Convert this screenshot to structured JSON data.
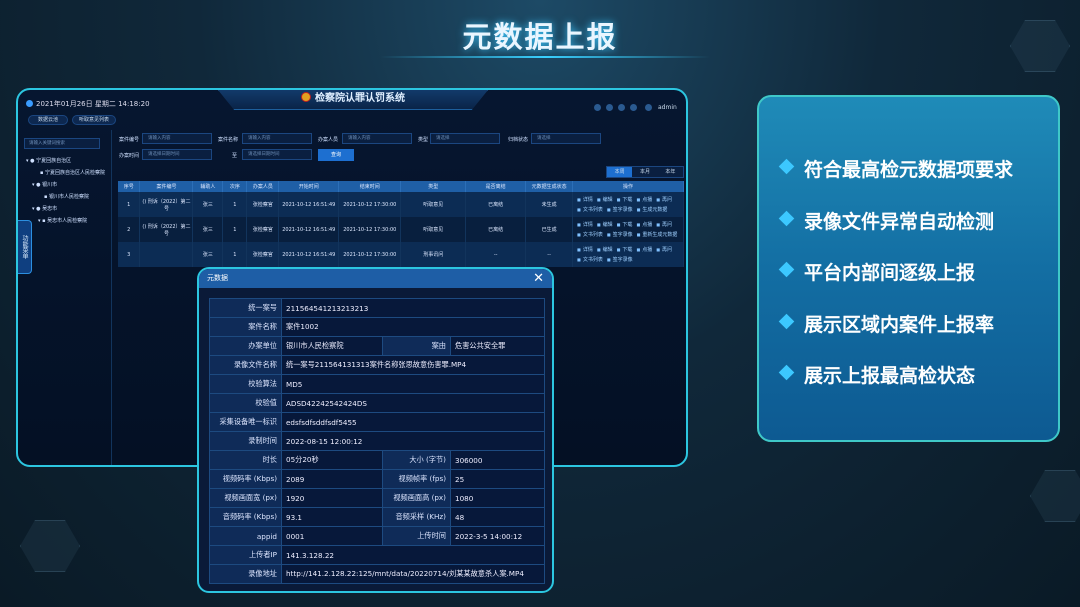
{
  "page_title": "元数据上报",
  "app": {
    "datetime": "2021年01月26日  星期二  14:18:20",
    "system_title": "检察院认罪认罚系统",
    "nav_pills": [
      "数据云池",
      "听取意见列表"
    ],
    "user": "admin",
    "header_icons": [
      "user-icon",
      "home-icon",
      "settings-icon",
      "message-icon"
    ],
    "side_menu_tab": "功能菜单",
    "sidebar": {
      "search_placeholder": "请输入关键词搜索",
      "tree": [
        "宁夏回族自治区",
        "宁夏回族自治区人民检察院",
        "银川市",
        "银川市人民检察院",
        "吴忠市",
        "吴忠市人民检察院"
      ]
    },
    "filters": {
      "case_no_label": "案件编号",
      "case_no_placeholder": "请输入内容",
      "case_name_label": "案件名称",
      "case_name_placeholder": "请输入内容",
      "handler_label": "办案人员",
      "handler_placeholder": "请输入内容",
      "type_label": "类型",
      "type_placeholder": "请选择",
      "status_label": "归档状态",
      "status_placeholder": "请选择",
      "time_label": "办案时间",
      "time_start_placeholder": "请选择日期时间",
      "to_label": "至",
      "time_end_placeholder": "请选择日期时间",
      "query_button": "查询"
    },
    "range_tabs": [
      "本周",
      "本月",
      "本年"
    ],
    "table": {
      "headers": [
        "序号",
        "案件编号",
        "辅助人",
        "次序",
        "办案人员",
        "开始时间",
        "结束时间",
        "类型",
        "是否离结",
        "元数据生成状态",
        "操作"
      ],
      "rows": [
        {
          "no": "1",
          "case": "() 刑诉（2022）第二号",
          "assist": "张三",
          "order": "1",
          "handler": "张检察官",
          "start": "2021-10-12 16:51:49",
          "end": "2021-10-12 17:30:00",
          "type": "听取意见",
          "closed": "已离结",
          "meta": "未生成",
          "ops": [
            "详情",
            "编辑",
            "下载",
            "点播",
            "再问",
            "文书列表",
            "签字录像",
            "生成元数据"
          ]
        },
        {
          "no": "2",
          "case": "() 刑诉（2022）第二号",
          "assist": "张三",
          "order": "1",
          "handler": "张检察官",
          "start": "2021-10-12 16:51:49",
          "end": "2021-10-12 17:30:00",
          "type": "听取意见",
          "closed": "已离结",
          "meta": "已生成",
          "ops": [
            "详情",
            "编辑",
            "下载",
            "点播",
            "再问",
            "文书列表",
            "签字录像",
            "重新生成元数据"
          ]
        },
        {
          "no": "3",
          "case": "",
          "assist": "张三",
          "order": "1",
          "handler": "张检察官",
          "start": "2021-10-12 16:51:49",
          "end": "2021-10-12 17:30:00",
          "type": "刑事讯问",
          "closed": "--",
          "meta": "--",
          "ops": [
            "详情",
            "编辑",
            "下载",
            "点播",
            "再问",
            "文书列表",
            "签字录像"
          ]
        }
      ]
    }
  },
  "modal": {
    "title": "元数据",
    "close": "✕",
    "fields": {
      "unified_no": {
        "k": "统一案号",
        "v": "211564541213213213"
      },
      "case_name": {
        "k": "案件名称",
        "v": "案件1002"
      },
      "unit": {
        "k": "办案单位",
        "v": "银川市人民检察院"
      },
      "cause": {
        "k": "案由",
        "v": "危害公共安全罪"
      },
      "file_name": {
        "k": "录像文件名称",
        "v": "统一案号211564131313案件名称张思故意伤害罪.MP4"
      },
      "algo": {
        "k": "校验算法",
        "v": "MD5"
      },
      "checksum": {
        "k": "校验值",
        "v": "ADSD42242542424DS"
      },
      "device_id": {
        "k": "采集设备唯一标识",
        "v": "edsfsdfsddfsdf5455"
      },
      "record_time": {
        "k": "录制时间",
        "v": "2022-08-15 12:00:12"
      },
      "duration": {
        "k": "时长",
        "v": "05分20秒"
      },
      "size": {
        "k": "大小 (字节)",
        "v": "306000"
      },
      "vbitrate": {
        "k": "视频码率 (Kbps)",
        "v": "2089"
      },
      "fps": {
        "k": "视频帧率 (fps)",
        "v": "25"
      },
      "width": {
        "k": "视频画面宽 (px)",
        "v": "1920"
      },
      "height": {
        "k": "视频画面高 (px)",
        "v": "1080"
      },
      "abitrate": {
        "k": "音频码率 (Kbps)",
        "v": "93.1"
      },
      "asample": {
        "k": "音频采样 (KHz)",
        "v": "48"
      },
      "appid": {
        "k": "appid",
        "v": "0001"
      },
      "upload_time": {
        "k": "上传时间",
        "v": "2022-3-5 14:00:12"
      },
      "uploader_ip": {
        "k": "上传者IP",
        "v": "141.3.128.22"
      },
      "url": {
        "k": "录像地址",
        "v": "http://141.2.128.22:125/mnt/data/20220714/刘某某故意杀人案.MP4"
      }
    }
  },
  "features": [
    "符合最高检元数据项要求",
    "录像文件异常自动检测",
    "平台内部间逐级上报",
    "展示区域内案件上报率",
    "展示上报最高检状态"
  ],
  "colors": {
    "accent": "#2cc6e0",
    "table_header": "#1f5fa6",
    "button": "#1d6fd0",
    "panel": "#136ea3"
  }
}
